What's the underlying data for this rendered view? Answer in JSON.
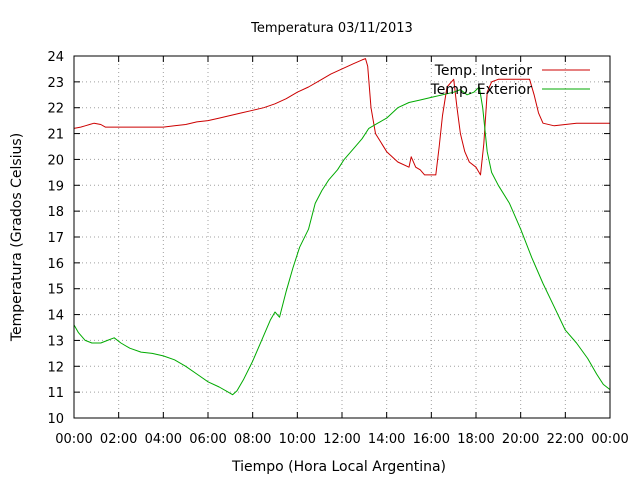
{
  "chart_data": {
    "type": "line",
    "title": "Temperatura 03/11/2013",
    "xlabel": "Tiempo (Hora Local Argentina)",
    "ylabel": "Temperatura (Grados Celsius)",
    "xlim": [
      0,
      24
    ],
    "ylim": [
      10,
      24
    ],
    "x_tick_labels": [
      "00:00",
      "02:00",
      "04:00",
      "06:00",
      "08:00",
      "10:00",
      "12:00",
      "14:00",
      "16:00",
      "18:00",
      "20:00",
      "22:00",
      "00:00"
    ],
    "y_tick_labels": [
      "10",
      "11",
      "12",
      "13",
      "14",
      "15",
      "16",
      "17",
      "18",
      "19",
      "20",
      "21",
      "22",
      "23",
      "24"
    ],
    "grid": true,
    "legend_position": "top-right",
    "series": [
      {
        "name": "Temp. Interior",
        "color": "#cc0000",
        "points": [
          [
            0.0,
            21.2
          ],
          [
            0.3,
            21.25
          ],
          [
            0.5,
            21.3
          ],
          [
            0.7,
            21.35
          ],
          [
            0.9,
            21.4
          ],
          [
            1.2,
            21.35
          ],
          [
            1.4,
            21.25
          ],
          [
            2.0,
            21.25
          ],
          [
            2.5,
            21.25
          ],
          [
            3.0,
            21.25
          ],
          [
            3.5,
            21.25
          ],
          [
            4.0,
            21.25
          ],
          [
            4.5,
            21.3
          ],
          [
            5.0,
            21.35
          ],
          [
            5.5,
            21.45
          ],
          [
            6.0,
            21.5
          ],
          [
            6.5,
            21.6
          ],
          [
            7.0,
            21.7
          ],
          [
            7.5,
            21.8
          ],
          [
            8.0,
            21.9
          ],
          [
            8.5,
            22.0
          ],
          [
            9.0,
            22.15
          ],
          [
            9.5,
            22.35
          ],
          [
            10.0,
            22.6
          ],
          [
            10.5,
            22.8
          ],
          [
            11.0,
            23.05
          ],
          [
            11.5,
            23.3
          ],
          [
            12.0,
            23.5
          ],
          [
            12.5,
            23.7
          ],
          [
            12.9,
            23.85
          ],
          [
            13.05,
            23.9
          ],
          [
            13.15,
            23.6
          ],
          [
            13.3,
            22.0
          ],
          [
            13.5,
            21.0
          ],
          [
            14.0,
            20.3
          ],
          [
            14.5,
            19.9
          ],
          [
            15.0,
            19.7
          ],
          [
            15.1,
            20.1
          ],
          [
            15.3,
            19.7
          ],
          [
            15.5,
            19.6
          ],
          [
            15.7,
            19.4
          ],
          [
            16.2,
            19.4
          ],
          [
            16.35,
            20.5
          ],
          [
            16.5,
            21.7
          ],
          [
            16.7,
            22.8
          ],
          [
            17.0,
            23.1
          ],
          [
            17.15,
            22.0
          ],
          [
            17.3,
            21.0
          ],
          [
            17.5,
            20.3
          ],
          [
            17.7,
            19.9
          ],
          [
            18.0,
            19.7
          ],
          [
            18.2,
            19.4
          ],
          [
            18.35,
            20.6
          ],
          [
            18.5,
            22.6
          ],
          [
            18.7,
            23.0
          ],
          [
            19.0,
            23.1
          ],
          [
            19.5,
            23.1
          ],
          [
            20.0,
            23.1
          ],
          [
            20.4,
            23.1
          ],
          [
            20.6,
            22.5
          ],
          [
            20.8,
            21.8
          ],
          [
            21.0,
            21.4
          ],
          [
            21.5,
            21.3
          ],
          [
            22.0,
            21.35
          ],
          [
            22.5,
            21.4
          ],
          [
            23.0,
            21.4
          ],
          [
            24.0,
            21.4
          ]
        ]
      },
      {
        "name": "Temp. Exterior",
        "color": "#00aa00",
        "points": [
          [
            0.0,
            13.6
          ],
          [
            0.2,
            13.3
          ],
          [
            0.5,
            13.0
          ],
          [
            0.8,
            12.9
          ],
          [
            1.2,
            12.9
          ],
          [
            1.5,
            13.0
          ],
          [
            1.8,
            13.1
          ],
          [
            2.1,
            12.9
          ],
          [
            2.5,
            12.7
          ],
          [
            3.0,
            12.55
          ],
          [
            3.5,
            12.5
          ],
          [
            4.0,
            12.4
          ],
          [
            4.5,
            12.25
          ],
          [
            5.0,
            12.0
          ],
          [
            5.5,
            11.7
          ],
          [
            6.0,
            11.4
          ],
          [
            6.5,
            11.2
          ],
          [
            6.9,
            11.0
          ],
          [
            7.1,
            10.9
          ],
          [
            7.3,
            11.05
          ],
          [
            7.6,
            11.5
          ],
          [
            8.0,
            12.2
          ],
          [
            8.4,
            13.0
          ],
          [
            8.8,
            13.8
          ],
          [
            9.0,
            14.1
          ],
          [
            9.2,
            13.9
          ],
          [
            9.5,
            14.9
          ],
          [
            9.8,
            15.8
          ],
          [
            10.1,
            16.6
          ],
          [
            10.5,
            17.3
          ],
          [
            10.8,
            18.3
          ],
          [
            11.1,
            18.8
          ],
          [
            11.4,
            19.2
          ],
          [
            11.8,
            19.6
          ],
          [
            12.1,
            20.0
          ],
          [
            12.5,
            20.4
          ],
          [
            12.9,
            20.8
          ],
          [
            13.2,
            21.2
          ],
          [
            13.6,
            21.4
          ],
          [
            14.0,
            21.6
          ],
          [
            14.5,
            22.0
          ],
          [
            15.0,
            22.2
          ],
          [
            15.5,
            22.3
          ],
          [
            16.0,
            22.4
          ],
          [
            16.5,
            22.5
          ],
          [
            17.0,
            22.6
          ],
          [
            17.3,
            22.7
          ],
          [
            17.6,
            22.5
          ],
          [
            17.9,
            22.6
          ],
          [
            18.15,
            22.8
          ],
          [
            18.3,
            22.0
          ],
          [
            18.5,
            20.3
          ],
          [
            18.7,
            19.5
          ],
          [
            19.0,
            19.0
          ],
          [
            19.5,
            18.3
          ],
          [
            20.0,
            17.3
          ],
          [
            20.5,
            16.2
          ],
          [
            21.0,
            15.2
          ],
          [
            21.5,
            14.3
          ],
          [
            22.0,
            13.4
          ],
          [
            22.5,
            12.9
          ],
          [
            23.0,
            12.3
          ],
          [
            23.4,
            11.7
          ],
          [
            23.7,
            11.3
          ],
          [
            24.0,
            11.1
          ]
        ]
      }
    ]
  }
}
